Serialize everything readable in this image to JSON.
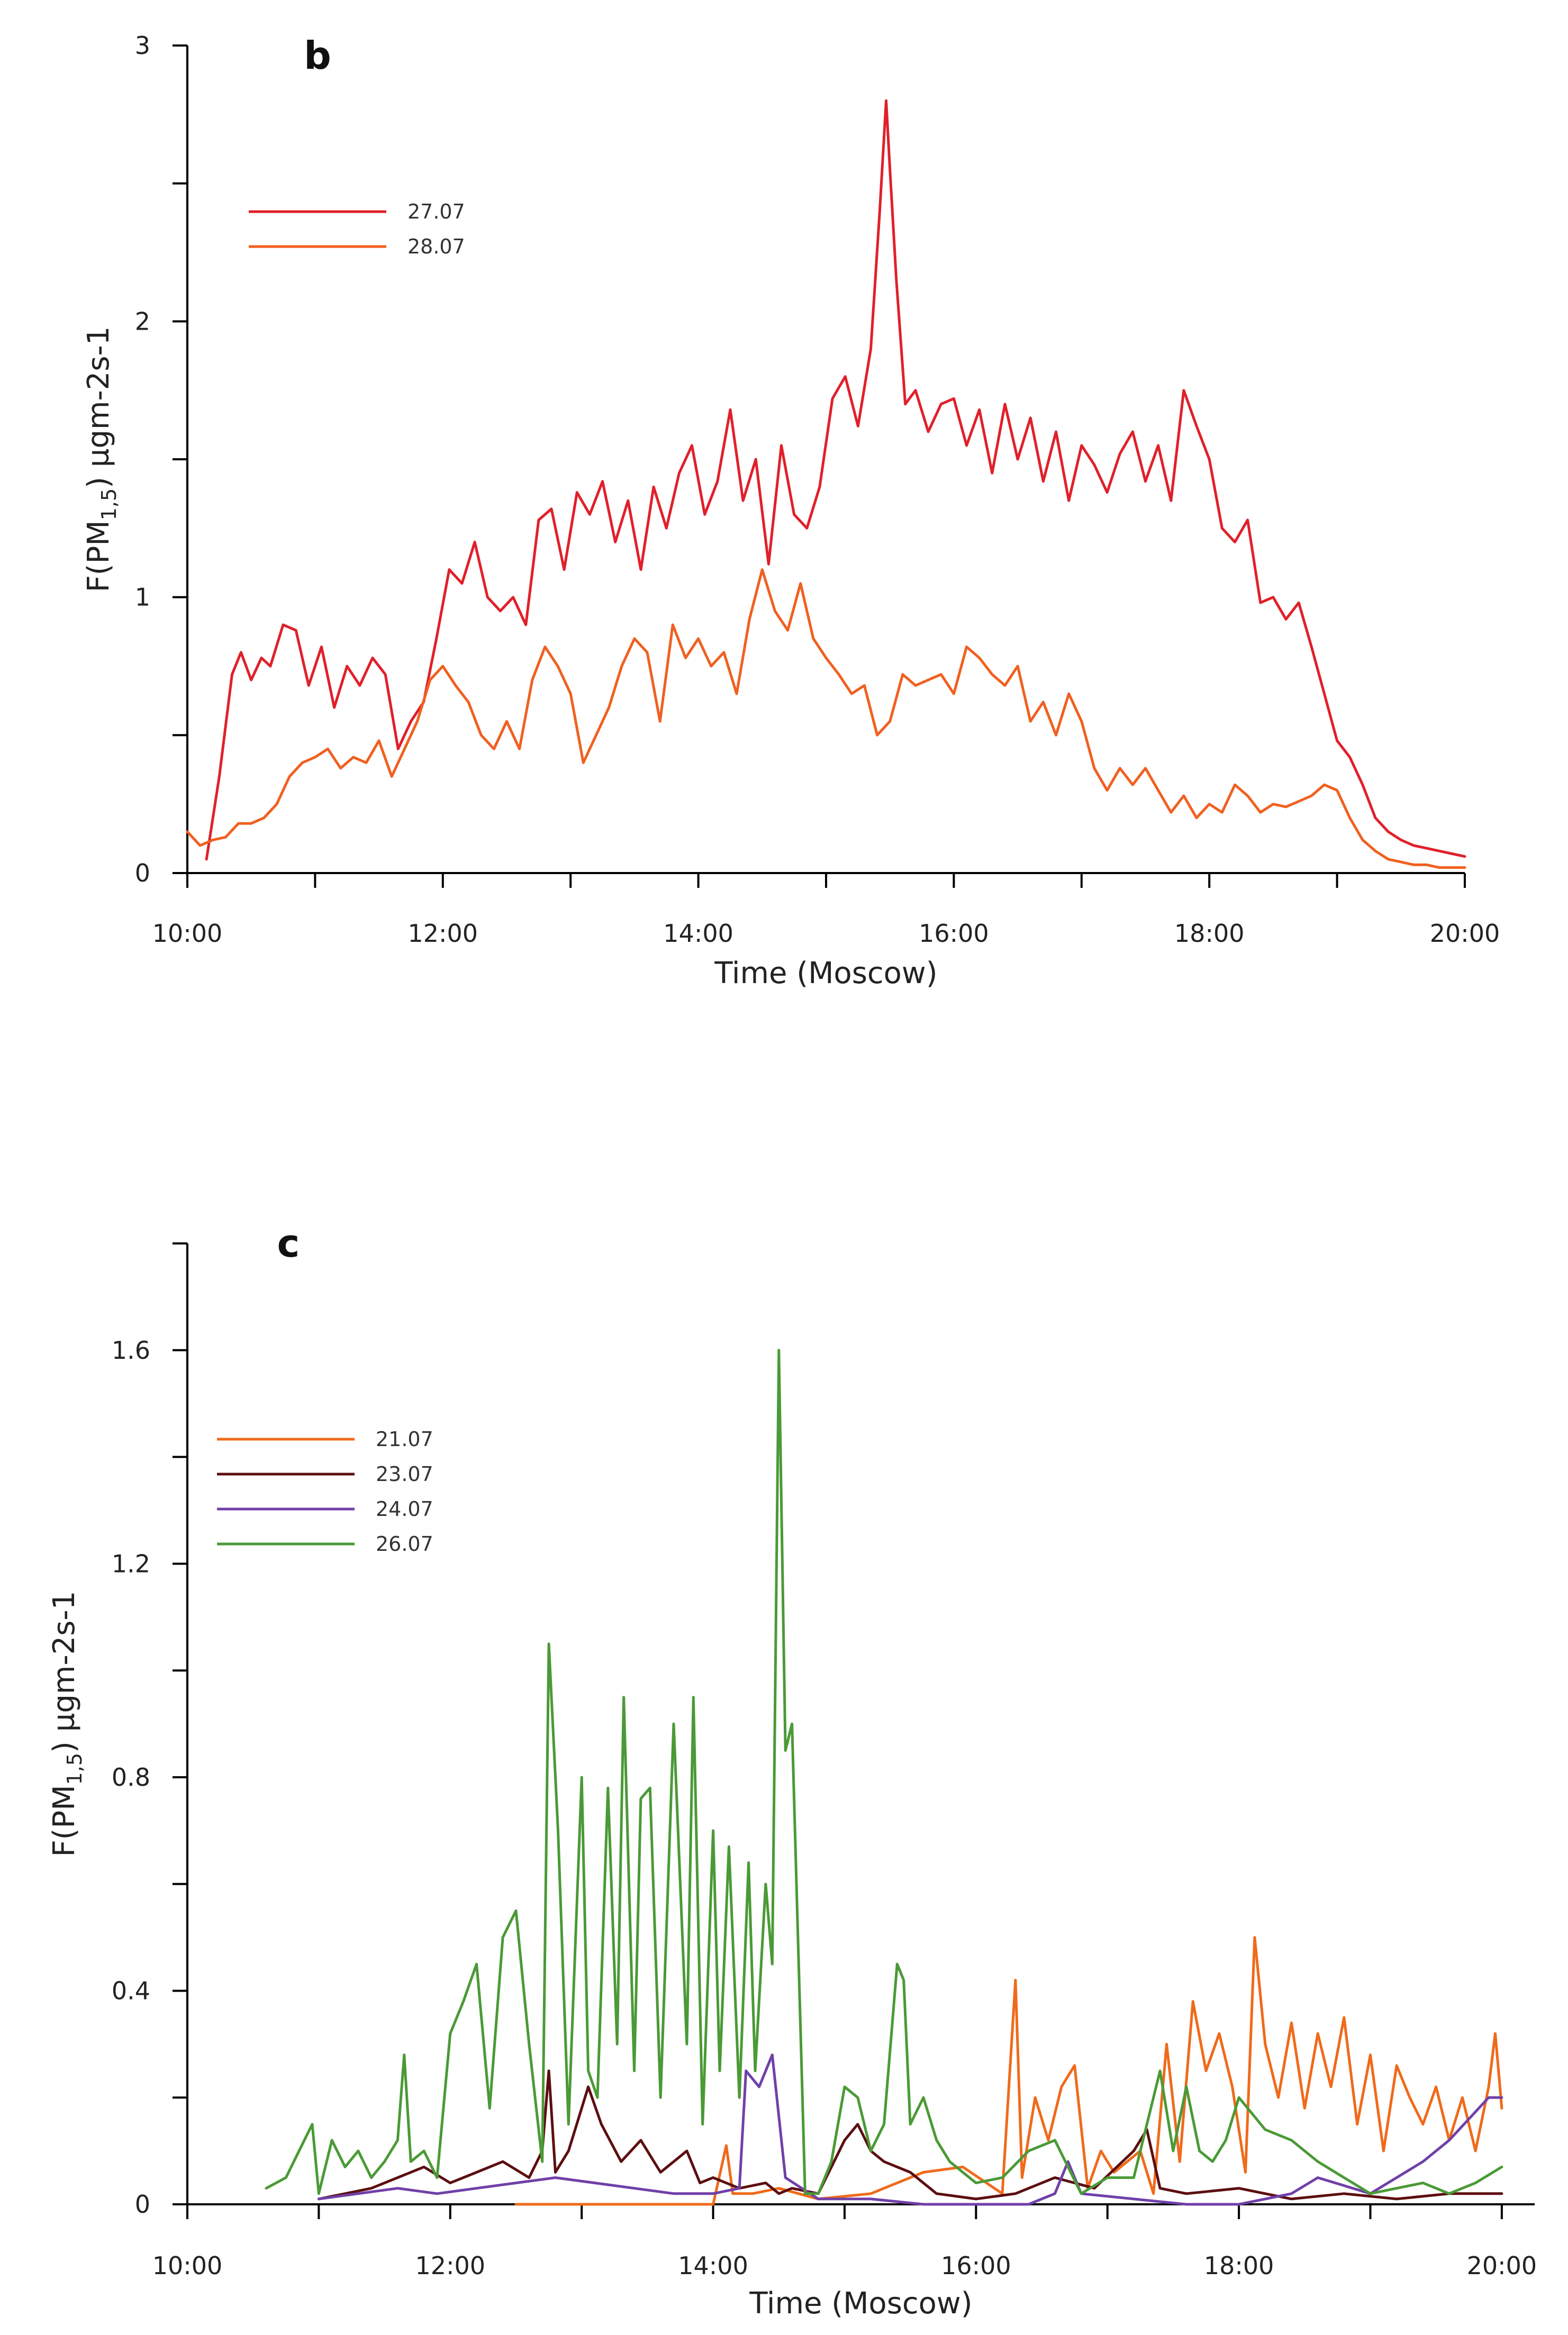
{
  "chart_data": [
    {
      "id": "b",
      "type": "line",
      "panel_label": "b",
      "xlabel": "Time (Moscow)",
      "ylabel": "F(PM1,5) µgm-2s-1",
      "ylabel_parts": {
        "prefix": "F(PM",
        "sub": "1,5",
        "suffix": ") µgm-2s-1"
      },
      "xlim": [
        10,
        20
      ],
      "ylim": [
        0,
        3
      ],
      "x_ticks": [
        10,
        11,
        12,
        13,
        14,
        15,
        16,
        17,
        18,
        19,
        20
      ],
      "x_tick_labels": [
        {
          "value": 10,
          "label": "10:00"
        },
        {
          "value": 12,
          "label": "12:00"
        },
        {
          "value": 14,
          "label": "14:00"
        },
        {
          "value": 16,
          "label": "16:00"
        },
        {
          "value": 18,
          "label": "18:00"
        },
        {
          "value": 20,
          "label": "20:00"
        }
      ],
      "y_ticks": [
        0,
        0.5,
        1,
        1.5,
        2,
        2.5,
        3
      ],
      "y_tick_labels": [
        {
          "value": 0,
          "label": "0"
        },
        {
          "value": 1,
          "label": "1"
        },
        {
          "value": 2,
          "label": "2"
        },
        {
          "value": 3,
          "label": "3"
        }
      ],
      "legend_position": "top-left",
      "series": [
        {
          "name": "27.07",
          "color": "#e0202a",
          "x": [
            10.15,
            10.25,
            10.35,
            10.42,
            10.5,
            10.58,
            10.65,
            10.75,
            10.85,
            10.95,
            11.05,
            11.15,
            11.25,
            11.35,
            11.45,
            11.55,
            11.65,
            11.75,
            11.85,
            11.95,
            12.05,
            12.15,
            12.25,
            12.35,
            12.45,
            12.55,
            12.65,
            12.75,
            12.85,
            12.95,
            13.05,
            13.15,
            13.25,
            13.35,
            13.45,
            13.55,
            13.65,
            13.75,
            13.85,
            13.95,
            14.05,
            14.15,
            14.25,
            14.35,
            14.45,
            14.55,
            14.65,
            14.75,
            14.85,
            14.95,
            15.05,
            15.15,
            15.25,
            15.35,
            15.42,
            15.47,
            15.5,
            15.55,
            15.62,
            15.7,
            15.8,
            15.9,
            16.0,
            16.1,
            16.2,
            16.3,
            16.4,
            16.5,
            16.6,
            16.7,
            16.8,
            16.9,
            17.0,
            17.1,
            17.2,
            17.3,
            17.4,
            17.5,
            17.6,
            17.7,
            17.8,
            17.9,
            18.0,
            18.1,
            18.2,
            18.3,
            18.4,
            18.5,
            18.6,
            18.7,
            18.8,
            18.9,
            19.0,
            19.1,
            19.2,
            19.3,
            19.4,
            19.5,
            19.6,
            19.7,
            19.8,
            19.9,
            20.0
          ],
          "y": [
            0.05,
            0.35,
            0.72,
            0.8,
            0.7,
            0.78,
            0.75,
            0.9,
            0.88,
            0.68,
            0.82,
            0.6,
            0.75,
            0.68,
            0.78,
            0.72,
            0.45,
            0.55,
            0.62,
            0.85,
            1.1,
            1.05,
            1.2,
            1.0,
            0.95,
            1.0,
            0.9,
            1.28,
            1.32,
            1.1,
            1.38,
            1.3,
            1.42,
            1.2,
            1.35,
            1.1,
            1.4,
            1.25,
            1.45,
            1.55,
            1.3,
            1.42,
            1.68,
            1.35,
            1.5,
            1.12,
            1.55,
            1.3,
            1.25,
            1.4,
            1.72,
            1.8,
            1.62,
            1.9,
            2.4,
            2.8,
            2.55,
            2.15,
            1.7,
            1.75,
            1.6,
            1.7,
            1.72,
            1.55,
            1.68,
            1.45,
            1.7,
            1.5,
            1.65,
            1.42,
            1.6,
            1.35,
            1.55,
            1.48,
            1.38,
            1.52,
            1.6,
            1.42,
            1.55,
            1.35,
            1.75,
            1.62,
            1.5,
            1.25,
            1.2,
            1.28,
            0.98,
            1.0,
            0.92,
            0.98,
            0.82,
            0.65,
            0.48,
            0.42,
            0.32,
            0.2,
            0.15,
            0.12,
            0.1,
            0.09,
            0.08,
            0.07,
            0.06
          ]
        },
        {
          "name": "28.07",
          "color": "#f06020",
          "x": [
            10.0,
            10.1,
            10.2,
            10.3,
            10.4,
            10.5,
            10.6,
            10.7,
            10.8,
            10.9,
            11.0,
            11.1,
            11.2,
            11.3,
            11.4,
            11.5,
            11.6,
            11.7,
            11.8,
            11.9,
            12.0,
            12.1,
            12.2,
            12.3,
            12.4,
            12.5,
            12.6,
            12.7,
            12.8,
            12.9,
            13.0,
            13.1,
            13.2,
            13.3,
            13.4,
            13.5,
            13.6,
            13.7,
            13.8,
            13.9,
            14.0,
            14.1,
            14.2,
            14.3,
            14.4,
            14.5,
            14.6,
            14.7,
            14.8,
            14.9,
            15.0,
            15.1,
            15.2,
            15.3,
            15.4,
            15.5,
            15.6,
            15.7,
            15.8,
            15.9,
            16.0,
            16.1,
            16.2,
            16.3,
            16.4,
            16.5,
            16.6,
            16.7,
            16.8,
            16.9,
            17.0,
            17.1,
            17.2,
            17.3,
            17.4,
            17.5,
            17.6,
            17.7,
            17.8,
            17.9,
            18.0,
            18.1,
            18.2,
            18.3,
            18.4,
            18.5,
            18.6,
            18.7,
            18.8,
            18.9,
            19.0,
            19.1,
            19.2,
            19.3,
            19.4,
            19.5,
            19.6,
            19.7,
            19.8,
            19.9,
            20.0
          ],
          "y": [
            0.15,
            0.1,
            0.12,
            0.13,
            0.18,
            0.18,
            0.2,
            0.25,
            0.35,
            0.4,
            0.42,
            0.45,
            0.38,
            0.42,
            0.4,
            0.48,
            0.35,
            0.45,
            0.55,
            0.7,
            0.75,
            0.68,
            0.62,
            0.5,
            0.45,
            0.55,
            0.45,
            0.7,
            0.82,
            0.75,
            0.65,
            0.4,
            0.5,
            0.6,
            0.75,
            0.85,
            0.8,
            0.55,
            0.9,
            0.78,
            0.85,
            0.75,
            0.8,
            0.65,
            0.92,
            1.1,
            0.95,
            0.88,
            1.05,
            0.85,
            0.78,
            0.72,
            0.65,
            0.68,
            0.5,
            0.55,
            0.72,
            0.68,
            0.7,
            0.72,
            0.65,
            0.82,
            0.78,
            0.72,
            0.68,
            0.75,
            0.55,
            0.62,
            0.5,
            0.65,
            0.55,
            0.38,
            0.3,
            0.38,
            0.32,
            0.38,
            0.3,
            0.22,
            0.28,
            0.2,
            0.25,
            0.22,
            0.32,
            0.28,
            0.22,
            0.25,
            0.24,
            0.26,
            0.28,
            0.32,
            0.3,
            0.2,
            0.12,
            0.08,
            0.05,
            0.04,
            0.03,
            0.03,
            0.02,
            0.02,
            0.02
          ]
        }
      ]
    },
    {
      "id": "c",
      "type": "line",
      "panel_label": "c",
      "xlabel": "Time (Moscow)",
      "ylabel": "F(PM1,5) µgm-2s-1",
      "ylabel_parts": {
        "prefix": "F(PM",
        "sub": "1,5",
        "suffix": ") µgm-2s-1"
      },
      "xlim": [
        10,
        20.25
      ],
      "ylim": [
        0,
        1.8
      ],
      "x_ticks": [
        10,
        11,
        12,
        13,
        14,
        15,
        16,
        17,
        18,
        19,
        20
      ],
      "x_tick_labels": [
        {
          "value": 10,
          "label": "10:00"
        },
        {
          "value": 12,
          "label": "12:00"
        },
        {
          "value": 14,
          "label": "14:00"
        },
        {
          "value": 16,
          "label": "16:00"
        },
        {
          "value": 18,
          "label": "18:00"
        },
        {
          "value": 20,
          "label": "20:00"
        }
      ],
      "y_ticks": [
        0,
        0.2,
        0.4,
        0.6,
        0.8,
        1.0,
        1.2,
        1.4,
        1.6,
        1.8
      ],
      "y_tick_labels": [
        {
          "value": 0,
          "label": "0"
        },
        {
          "value": 0.4,
          "label": "0.4"
        },
        {
          "value": 0.8,
          "label": "0.8"
        },
        {
          "value": 1.2,
          "label": "1.2"
        },
        {
          "value": 1.6,
          "label": "1.6"
        }
      ],
      "legend_position": "top-left",
      "series": [
        {
          "name": "21.07",
          "color": "#f06a1a",
          "x": [
            12.5,
            13.0,
            13.5,
            14.0,
            14.1,
            14.15,
            14.3,
            14.5,
            14.8,
            15.2,
            15.6,
            15.9,
            16.2,
            16.3,
            16.35,
            16.45,
            16.55,
            16.65,
            16.75,
            16.85,
            16.95,
            17.05,
            17.15,
            17.25,
            17.35,
            17.45,
            17.55,
            17.65,
            17.75,
            17.85,
            17.95,
            18.05,
            18.12,
            18.2,
            18.3,
            18.4,
            18.5,
            18.6,
            18.7,
            18.8,
            18.9,
            19.0,
            19.1,
            19.2,
            19.3,
            19.4,
            19.5,
            19.6,
            19.7,
            19.8,
            19.9,
            19.95,
            20.0
          ],
          "y": [
            0.0,
            0.0,
            0.0,
            0.0,
            0.11,
            0.02,
            0.02,
            0.03,
            0.01,
            0.02,
            0.06,
            0.07,
            0.02,
            0.42,
            0.05,
            0.2,
            0.12,
            0.22,
            0.26,
            0.03,
            0.1,
            0.06,
            0.08,
            0.1,
            0.02,
            0.3,
            0.08,
            0.38,
            0.25,
            0.32,
            0.22,
            0.06,
            0.5,
            0.3,
            0.2,
            0.34,
            0.18,
            0.32,
            0.22,
            0.35,
            0.15,
            0.28,
            0.1,
            0.26,
            0.2,
            0.15,
            0.22,
            0.12,
            0.2,
            0.1,
            0.22,
            0.32,
            0.18
          ]
        },
        {
          "name": "23.07",
          "color": "#5c0e10",
          "x": [
            11.0,
            11.2,
            11.4,
            11.6,
            11.8,
            12.0,
            12.2,
            12.4,
            12.6,
            12.7,
            12.75,
            12.8,
            12.9,
            13.0,
            13.05,
            13.15,
            13.3,
            13.45,
            13.6,
            13.75,
            13.8,
            13.9,
            14.0,
            14.2,
            14.4,
            14.5,
            14.6,
            14.8,
            15.0,
            15.1,
            15.2,
            15.3,
            15.5,
            15.7,
            16.0,
            16.3,
            16.6,
            16.9,
            17.2,
            17.3,
            17.4,
            17.6,
            18.0,
            18.4,
            18.8,
            19.2,
            19.6,
            20.0
          ],
          "y": [
            0.01,
            0.02,
            0.03,
            0.05,
            0.07,
            0.04,
            0.06,
            0.08,
            0.05,
            0.1,
            0.25,
            0.06,
            0.1,
            0.18,
            0.22,
            0.15,
            0.08,
            0.12,
            0.06,
            0.09,
            0.1,
            0.04,
            0.05,
            0.03,
            0.04,
            0.02,
            0.03,
            0.02,
            0.12,
            0.15,
            0.1,
            0.08,
            0.06,
            0.02,
            0.01,
            0.02,
            0.05,
            0.03,
            0.1,
            0.14,
            0.03,
            0.02,
            0.03,
            0.01,
            0.02,
            0.01,
            0.02,
            0.02
          ]
        },
        {
          "name": "24.07",
          "color": "#7040a8",
          "x": [
            11.0,
            11.3,
            11.6,
            11.9,
            12.2,
            12.5,
            12.8,
            13.1,
            13.4,
            13.7,
            14.0,
            14.2,
            14.25,
            14.35,
            14.45,
            14.55,
            14.8,
            15.2,
            15.6,
            16.0,
            16.4,
            16.6,
            16.7,
            16.8,
            17.2,
            17.6,
            18.0,
            18.4,
            18.6,
            19.0,
            19.4,
            19.6,
            19.9,
            20.0
          ],
          "y": [
            0.01,
            0.02,
            0.03,
            0.02,
            0.03,
            0.04,
            0.05,
            0.04,
            0.03,
            0.02,
            0.02,
            0.03,
            0.25,
            0.22,
            0.28,
            0.05,
            0.01,
            0.01,
            0.0,
            0.0,
            0.0,
            0.02,
            0.08,
            0.02,
            0.01,
            0.0,
            0.0,
            0.02,
            0.05,
            0.02,
            0.08,
            0.12,
            0.2,
            0.2
          ]
        },
        {
          "name": "26.07",
          "color": "#4a9a36",
          "x": [
            10.6,
            10.75,
            10.85,
            10.95,
            11.0,
            11.1,
            11.2,
            11.3,
            11.4,
            11.5,
            11.6,
            11.65,
            11.7,
            11.8,
            11.9,
            12.0,
            12.1,
            12.2,
            12.3,
            12.4,
            12.5,
            12.6,
            12.7,
            12.75,
            12.82,
            12.9,
            13.0,
            13.05,
            13.12,
            13.2,
            13.27,
            13.32,
            13.4,
            13.45,
            13.52,
            13.6,
            13.7,
            13.8,
            13.85,
            13.92,
            14.0,
            14.05,
            14.12,
            14.2,
            14.27,
            14.32,
            14.4,
            14.45,
            14.5,
            14.55,
            14.6,
            14.7,
            14.8,
            14.9,
            15.0,
            15.1,
            15.2,
            15.3,
            15.4,
            15.45,
            15.5,
            15.6,
            15.7,
            15.8,
            15.9,
            16.0,
            16.2,
            16.4,
            16.6,
            16.8,
            17.0,
            17.2,
            17.4,
            17.5,
            17.6,
            17.7,
            17.8,
            17.9,
            18.0,
            18.2,
            18.4,
            18.6,
            18.8,
            19.0,
            19.2,
            19.4,
            19.6,
            19.8,
            20.0
          ],
          "y": [
            0.03,
            0.05,
            0.1,
            0.15,
            0.02,
            0.12,
            0.07,
            0.1,
            0.05,
            0.08,
            0.12,
            0.28,
            0.08,
            0.1,
            0.05,
            0.32,
            0.38,
            0.45,
            0.18,
            0.5,
            0.55,
            0.3,
            0.08,
            1.05,
            0.7,
            0.15,
            0.8,
            0.25,
            0.2,
            0.78,
            0.3,
            0.95,
            0.25,
            0.76,
            0.78,
            0.2,
            0.9,
            0.3,
            0.95,
            0.15,
            0.7,
            0.25,
            0.67,
            0.2,
            0.64,
            0.25,
            0.6,
            0.45,
            1.6,
            0.85,
            0.9,
            0.02,
            0.02,
            0.08,
            0.22,
            0.2,
            0.1,
            0.15,
            0.45,
            0.42,
            0.15,
            0.2,
            0.12,
            0.08,
            0.06,
            0.04,
            0.05,
            0.1,
            0.12,
            0.02,
            0.05,
            0.05,
            0.25,
            0.1,
            0.22,
            0.1,
            0.08,
            0.12,
            0.2,
            0.14,
            0.12,
            0.08,
            0.05,
            0.02,
            0.03,
            0.04,
            0.02,
            0.04,
            0.07
          ]
        }
      ]
    }
  ]
}
